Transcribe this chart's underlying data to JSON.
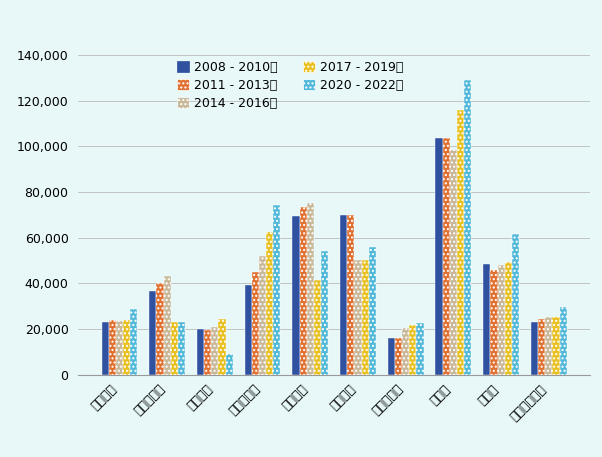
{
  "categories": [
    "スペイン",
    "ルーマニア",
    "ギリシャ",
    "ポーランド",
    "フランス",
    "イタリア",
    "ハンガリー",
    "ドイツ",
    "チェコ",
    "オーストリア"
  ],
  "series": [
    {
      "label": "2008 - 2010年",
      "color": "#3050A0",
      "hatch": "",
      "values": [
        23265,
        36800,
        19814,
        39410,
        69600,
        70000,
        16000,
        103600,
        48678,
        23000
      ]
    },
    {
      "label": "2011 - 2013年",
      "color": "#E07030",
      "hatch": "....",
      "values": [
        23816,
        40000,
        19392,
        44999,
        73500,
        70000,
        16000,
        103600,
        46033,
        24451
      ]
    },
    {
      "label": "2014 - 2016年",
      "color": "#C8B89A",
      "hatch": "....",
      "values": [
        23473,
        43200,
        21031,
        51778,
        75000,
        50000,
        20410,
        98297,
        48132,
        25099
      ]
    },
    {
      "label": "2017 - 2019年",
      "color": "#E8C020",
      "hatch": "....",
      "values": [
        23816,
        22930,
        24582,
        62575,
        41560,
        50000,
        21565,
        116000,
        49486,
        25277
      ]
    },
    {
      "label": "2020 - 2022年",
      "color": "#50B8D8",
      "hatch": "....",
      "values": [
        28786,
        23161,
        9266,
        74302,
        53953,
        56059,
        22447,
        129048,
        61572,
        29745
      ]
    }
  ],
  "ylim": [
    0,
    140000
  ],
  "yticks": [
    0,
    20000,
    40000,
    60000,
    80000,
    100000,
    120000,
    140000
  ],
  "background_color": "#E8F8F8",
  "bar_width": 0.15,
  "legend_fontsize": 9,
  "tick_fontsize": 9,
  "ylabel_fontsize": 10
}
